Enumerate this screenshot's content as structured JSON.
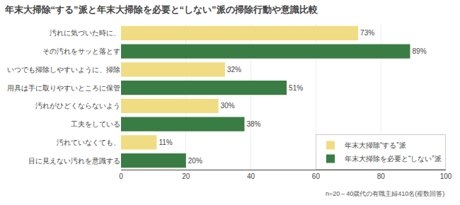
{
  "chart_data": {
    "type": "bar",
    "orientation": "horizontal",
    "title": "年末大掃除“する”派と年末大掃除を必要と“しない”派の掃除行動や意識比較",
    "categories": [
      "汚れに気づいた時に、",
      "その汚れをサッと落とす",
      "いつでも掃除しやすいように、掃除",
      "用具は手に取りやすいところに保管",
      "汚れがひどくならないよう",
      "工夫をしている",
      "汚れていなくても、",
      "目に見えない汚れを意識する"
    ],
    "series": [
      {
        "name": "年末大掃除“する”派",
        "color": "#F0DC82",
        "values": [
          73,
          null,
          32,
          null,
          30,
          null,
          11,
          null
        ],
        "value_labels": [
          "73%",
          null,
          "32%",
          null,
          "30%",
          null,
          "11%",
          null
        ]
      },
      {
        "name": "年末大掃除を必要と“しない”派",
        "color": "#3A7D44",
        "values": [
          null,
          89,
          null,
          51,
          null,
          38,
          null,
          20
        ],
        "value_labels": [
          null,
          "89%",
          null,
          "51%",
          null,
          "38%",
          null,
          "20%"
        ]
      }
    ],
    "xlim": [
      0,
      100
    ],
    "xticks": [
      0,
      20,
      40,
      60,
      80,
      100
    ],
    "grid": true,
    "legend": "lower right",
    "data_labels": true,
    "annotations": [
      "n=20～40歳代の有職主婦410名(複数回答)"
    ]
  }
}
